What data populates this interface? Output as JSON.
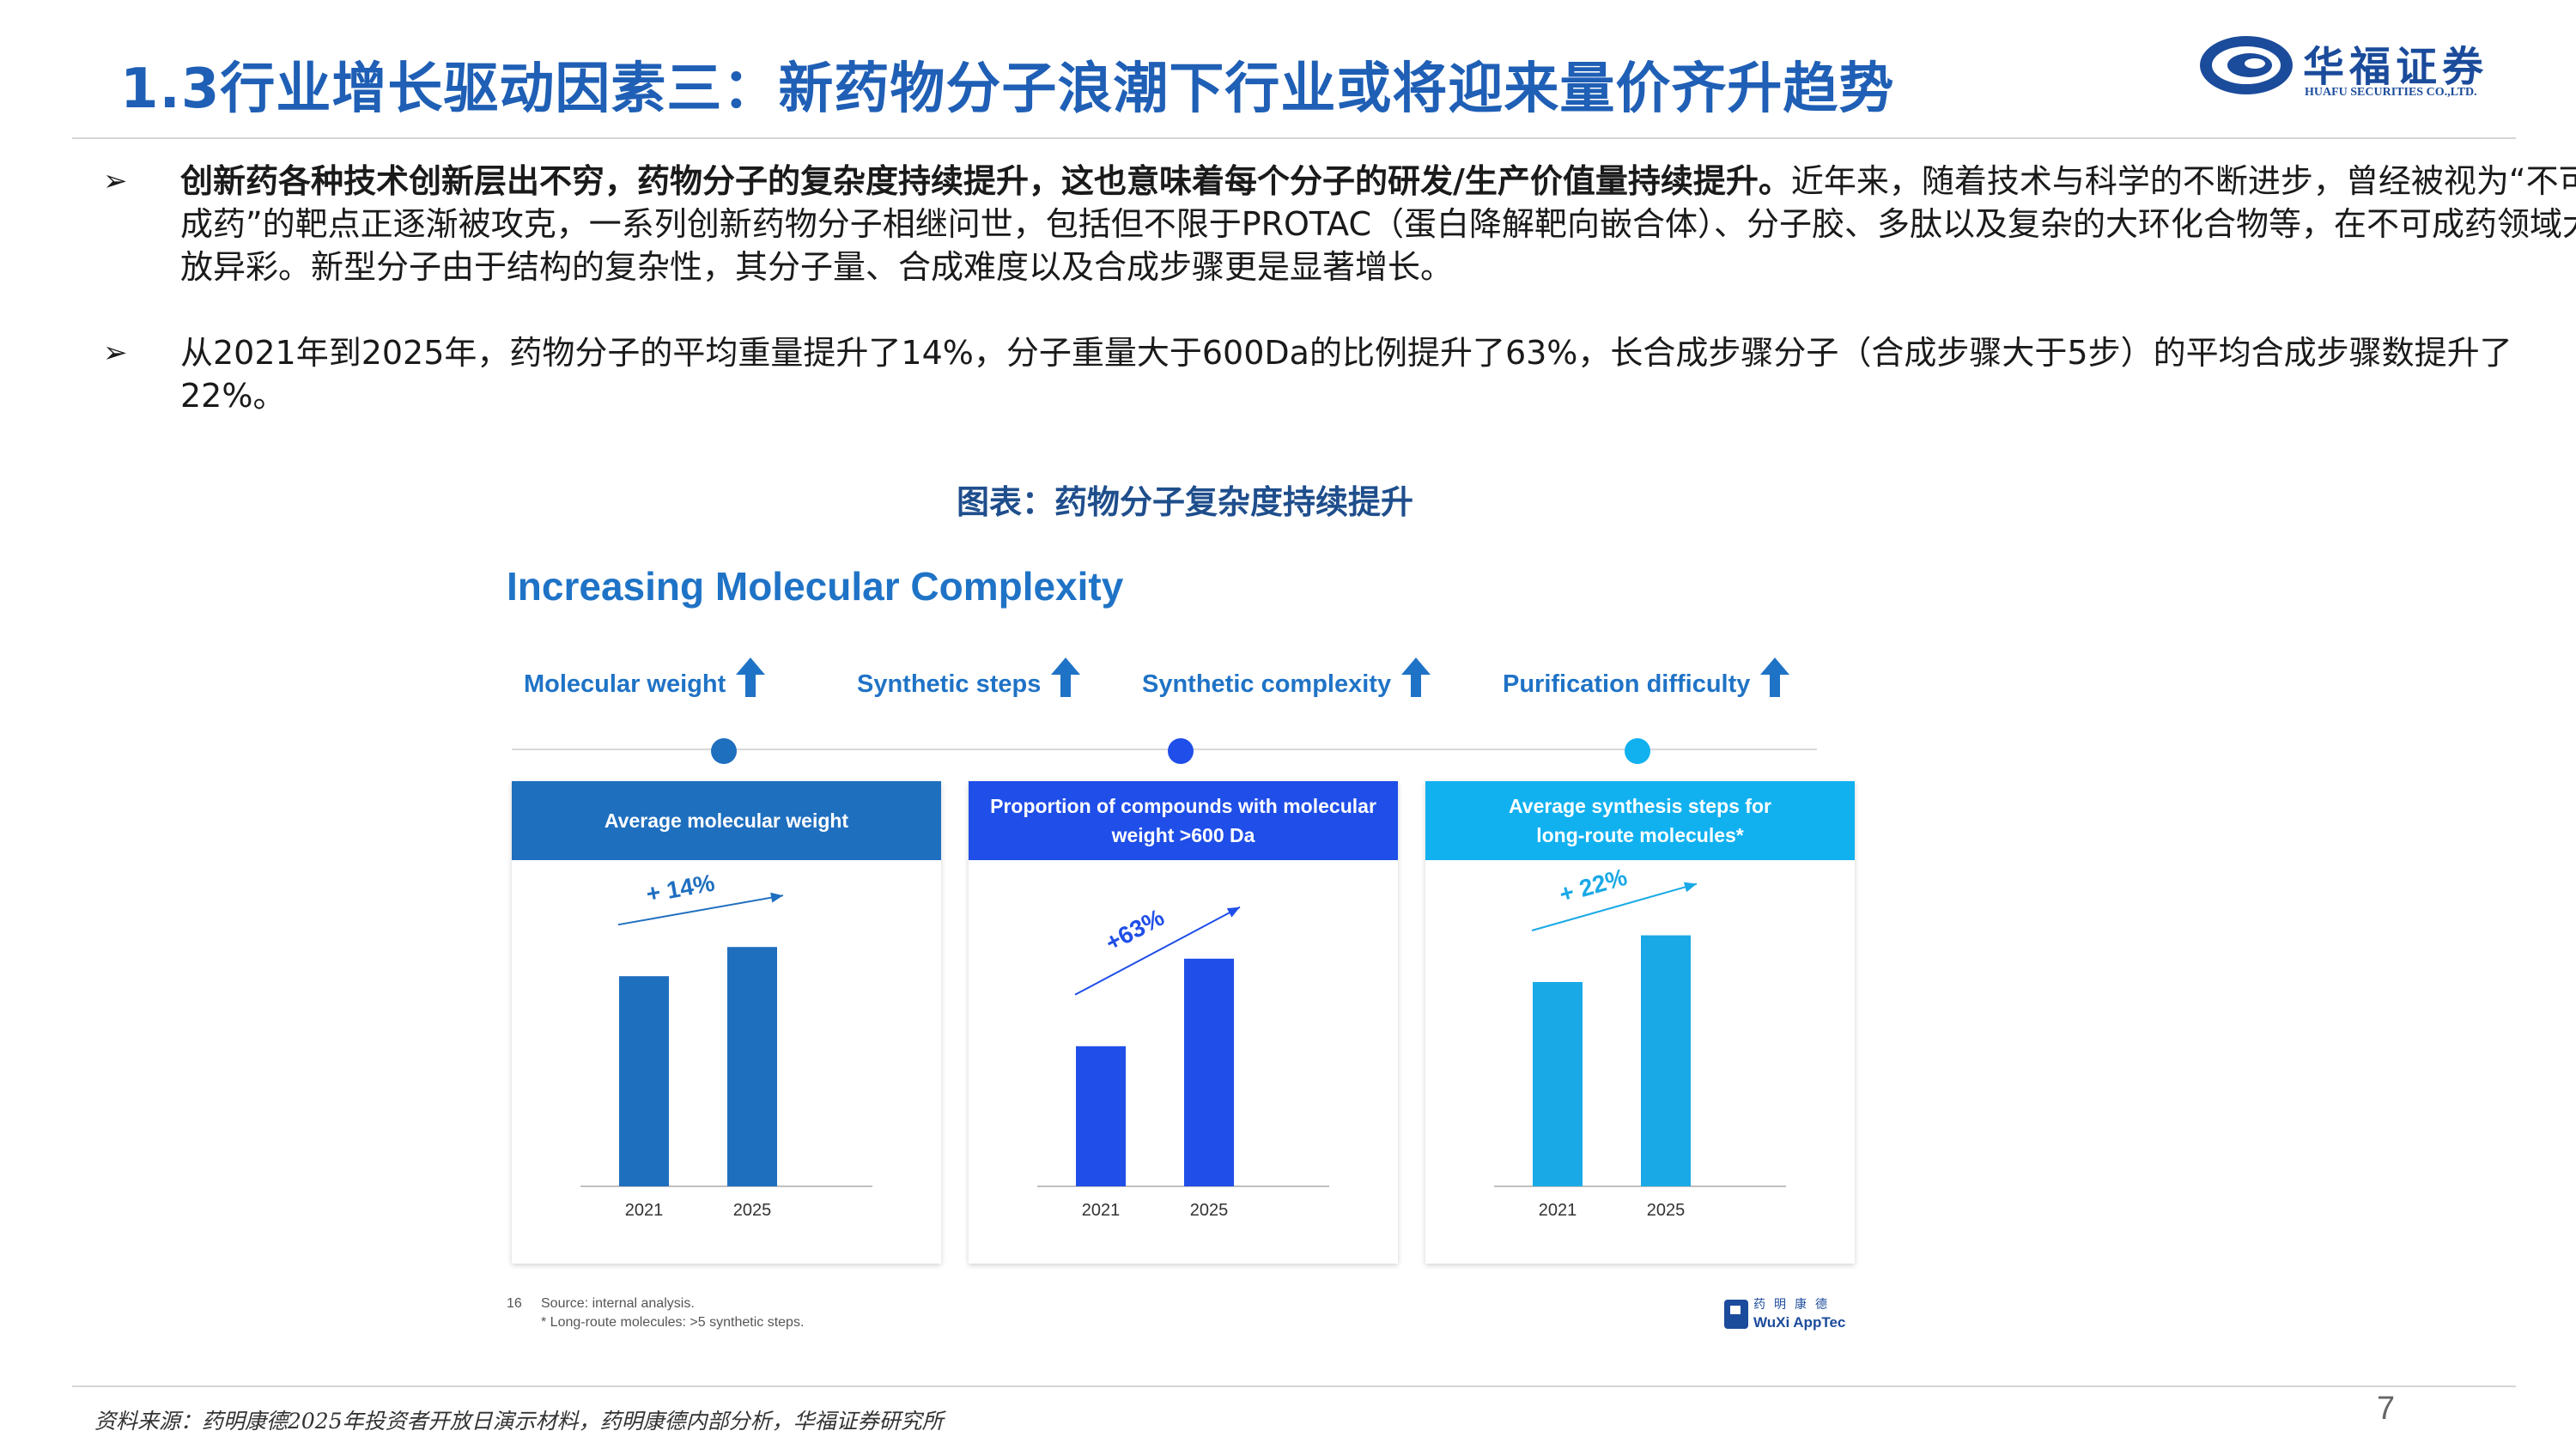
{
  "header": {
    "title": "1.3行业增长驱动因素三：新药物分子浪潮下行业或将迎来量价齐升趋势",
    "logo_cn": "华福证券",
    "logo_en": "HUAFU SECURITIES CO.,LTD."
  },
  "bullets": [
    {
      "mark": "➢",
      "bold": "创新药各种技术创新层出不穷，药物分子的复杂度持续提升，这也意味着每个分子的研发/生产价值量持续提升。",
      "text": "近年来，随着技术与科学的不断进步，曾经被视为“不可成药”的靶点正逐渐被攻克，一系列创新药物分子相继问世，包括但不限于PROTAC（蛋白降解靶向嵌合体）、分子胶、多肽以及复杂的大环化合物等，在不可成药领域大放异彩。新型分子由于结构的复杂性，其分子量、合成难度以及合成步骤更是显著增长。"
    },
    {
      "mark": "➢",
      "bold": "",
      "text": "从2021年到2025年，药物分子的平均重量提升了14%，分子重量大于600Da的比例提升了63%，长合成步骤分子（合成步骤大于5步）的平均合成步骤数提升了22%。"
    }
  ],
  "figure": {
    "caption": "图表：药物分子复杂度持续提升",
    "title": "Increasing Molecular Complexity",
    "metrics": [
      "Molecular weight",
      "Synthetic steps",
      "Synthetic complexity",
      "Purification difficulty"
    ],
    "arrow_icon": "up-arrow-icon",
    "footnote_num": "16",
    "footnote_lines": [
      "Source: internal analysis.",
      "* Long-route molecules: >5 synthetic steps."
    ],
    "wuxi_logo_cn": "药明康德",
    "wuxi_logo_en": "WuXi AppTec"
  },
  "chart_data": [
    {
      "type": "bar",
      "title": "Average molecular weight",
      "categories": [
        "2021",
        "2025"
      ],
      "values": [
        0.72,
        0.82
      ],
      "annotation": "+ 14%",
      "color": "#1f6fbf",
      "head_color": "#1f6fbf"
    },
    {
      "type": "bar",
      "title": "Proportion of compounds with molecular weight >600 Da",
      "categories": [
        "2021",
        "2025"
      ],
      "values": [
        0.48,
        0.78
      ],
      "annotation": "+63%",
      "color": "#1f4ee8",
      "head_color": "#1f4ee8"
    },
    {
      "type": "bar",
      "title": "Average synthesis steps for long-route molecules*",
      "categories": [
        "2021",
        "2025"
      ],
      "values": [
        0.7,
        0.86
      ],
      "annotation": "+ 22%",
      "color": "#19a9e6",
      "head_color": "#11b1f0"
    }
  ],
  "footer": {
    "source": "资料来源：药明康德2025年投资者开放日演示材料，药明康德内部分析，华福证券研究所",
    "page": "7"
  }
}
